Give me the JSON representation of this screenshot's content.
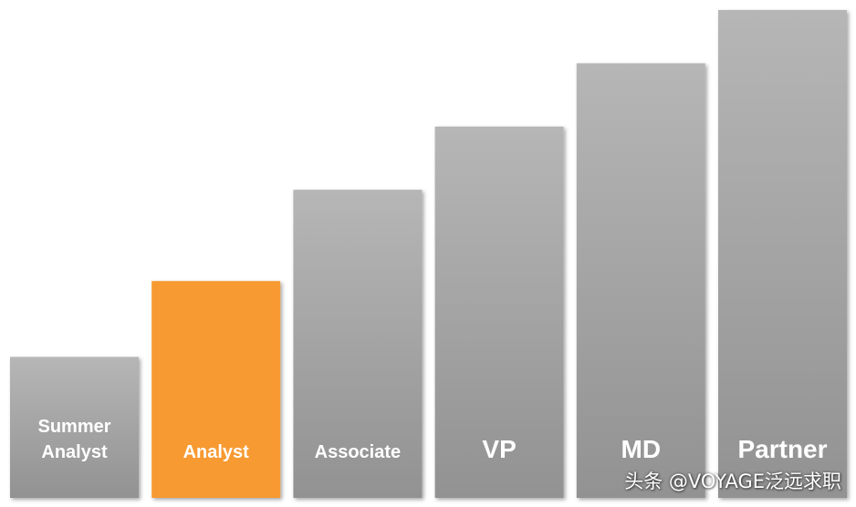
{
  "chart_data": {
    "type": "bar",
    "categories": [
      "Summer Analyst",
      "Analyst",
      "Associate",
      "VP",
      "MD",
      "Partner"
    ],
    "label_lines": [
      [
        "Summer",
        "Analyst"
      ],
      [
        "Analyst"
      ],
      [
        "Associate"
      ],
      [
        "VP"
      ],
      [
        "MD"
      ],
      [
        "Partner"
      ]
    ],
    "values": [
      156,
      240,
      341,
      411,
      481,
      540
    ],
    "highlight_index": 1,
    "colors": {
      "bar": "#a6a6a6",
      "bar_light": "#b8b8b8",
      "bar_dark": "#8f8f8f",
      "highlight": "#f79a33",
      "label": "#ffffff"
    },
    "title": "",
    "xlabel": "",
    "ylabel": "",
    "ylim": [
      0,
      545
    ],
    "grid": false,
    "legend": "none"
  },
  "watermark": {
    "text": "头条 @VOYAGE泛远求职"
  }
}
